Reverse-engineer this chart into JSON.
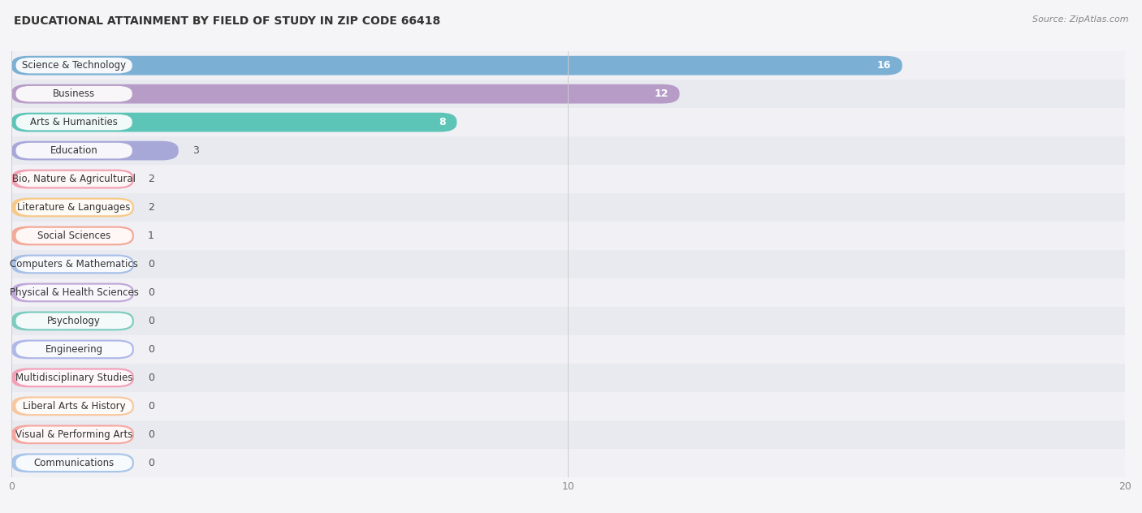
{
  "title": "EDUCATIONAL ATTAINMENT BY FIELD OF STUDY IN ZIP CODE 66418",
  "source": "Source: ZipAtlas.com",
  "categories": [
    "Science & Technology",
    "Business",
    "Arts & Humanities",
    "Education",
    "Bio, Nature & Agricultural",
    "Literature & Languages",
    "Social Sciences",
    "Computers & Mathematics",
    "Physical & Health Sciences",
    "Psychology",
    "Engineering",
    "Multidisciplinary Studies",
    "Liberal Arts & History",
    "Visual & Performing Arts",
    "Communications"
  ],
  "values": [
    16,
    12,
    8,
    3,
    2,
    2,
    1,
    0,
    0,
    0,
    0,
    0,
    0,
    0,
    0
  ],
  "bar_colors": [
    "#7BAFD4",
    "#B89CC8",
    "#5DC5B8",
    "#A8A8D8",
    "#F4A0B0",
    "#F8C888",
    "#F4A898",
    "#A8C0E8",
    "#C0A8D8",
    "#7DCCC0",
    "#B0B8E8",
    "#F4A0B8",
    "#F8C8A0",
    "#F4A8A0",
    "#A8C4E8"
  ],
  "xlim": [
    0,
    20
  ],
  "xticks": [
    0,
    10,
    20
  ],
  "row_bg_light": "#f0f0f5",
  "row_bg_dark": "#e8e8f0",
  "title_fontsize": 10,
  "label_fontsize": 8.5,
  "value_fontsize": 9
}
